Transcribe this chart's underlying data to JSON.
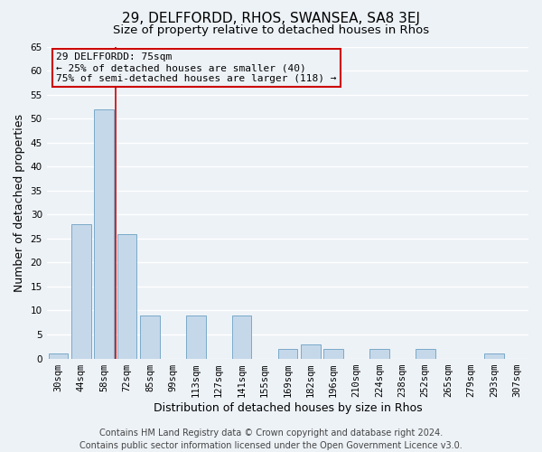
{
  "title": "29, DELFFORDD, RHOS, SWANSEA, SA8 3EJ",
  "subtitle": "Size of property relative to detached houses in Rhos",
  "xlabel": "Distribution of detached houses by size in Rhos",
  "ylabel": "Number of detached properties",
  "categories": [
    "30sqm",
    "44sqm",
    "58sqm",
    "72sqm",
    "85sqm",
    "99sqm",
    "113sqm",
    "127sqm",
    "141sqm",
    "155sqm",
    "169sqm",
    "182sqm",
    "196sqm",
    "210sqm",
    "224sqm",
    "238sqm",
    "252sqm",
    "265sqm",
    "279sqm",
    "293sqm",
    "307sqm"
  ],
  "values": [
    1,
    28,
    52,
    26,
    9,
    0,
    9,
    0,
    9,
    0,
    2,
    3,
    2,
    0,
    2,
    0,
    2,
    0,
    0,
    1,
    0
  ],
  "bar_color": "#c5d8ea",
  "bar_edge_color": "#7aaac8",
  "ylim": [
    0,
    65
  ],
  "yticks": [
    0,
    5,
    10,
    15,
    20,
    25,
    30,
    35,
    40,
    45,
    50,
    55,
    60,
    65
  ],
  "property_line_color": "#cc0000",
  "property_line_index": 2.5,
  "annotation_title": "29 DELFFORDD: 75sqm",
  "annotation_line1": "← 25% of detached houses are smaller (40)",
  "annotation_line2": "75% of semi-detached houses are larger (118) →",
  "annotation_box_edgecolor": "#cc0000",
  "footer_line1": "Contains HM Land Registry data © Crown copyright and database right 2024.",
  "footer_line2": "Contains public sector information licensed under the Open Government Licence v3.0.",
  "background_color": "#edf2f7",
  "grid_color": "#ffffff",
  "title_fontsize": 11,
  "subtitle_fontsize": 9.5,
  "axis_label_fontsize": 9,
  "tick_fontsize": 7.5,
  "annotation_fontsize": 8,
  "footer_fontsize": 7
}
